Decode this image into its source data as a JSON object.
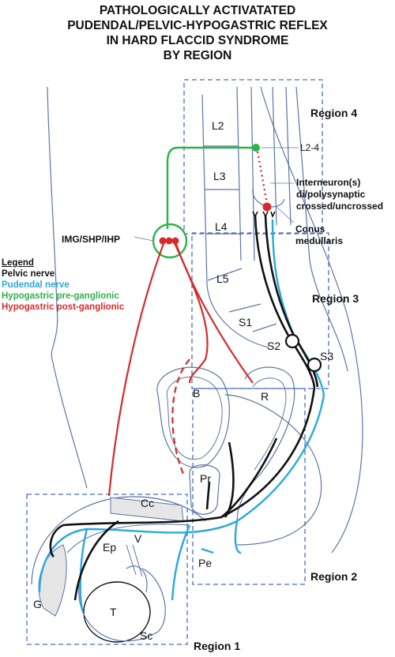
{
  "title": {
    "line1": "PATHOLOGICALLY ACTIVATATED",
    "line2": "PUDENDAL/PELVIC-HYPOGASTRIC REFLEX",
    "line3": "IN HARD FLACCID SYNDROME",
    "line4": "BY REGION"
  },
  "regions": {
    "r1": "Region 1",
    "r2": "Region 2",
    "r3": "Region 3",
    "r4": "Region 4"
  },
  "vertebrae": {
    "l2": "L2",
    "l3": "L3",
    "l4": "L4",
    "l5": "L5",
    "s1": "S1",
    "s2": "S2",
    "s3": "S3"
  },
  "labels": {
    "l2_4": "L2-4",
    "interneuron_1": "Interneuron(s)",
    "interneuron_2": "di/polysynaptic",
    "interneuron_3": "crossed/uncrossed",
    "conus_1": "Conus",
    "conus_2": "medullaris",
    "img": "IMG/SHP/IHP",
    "bladder": "B",
    "rectum": "R",
    "prostate": "Pr",
    "corpus": "Cc",
    "ep": "Ep",
    "v": "V",
    "g": "G",
    "t": "T",
    "sc": "Sc",
    "pe": "Pe"
  },
  "legend": {
    "heading": "Legend",
    "pelvic": "Pelvic nerve",
    "pudendal": "Pudendal nerve",
    "pre": "Hypogastric pre-ganglionic",
    "post": "Hypogastric post-ganglionic"
  },
  "colors": {
    "pelvic": "#111111",
    "pudendal": "#2aa8de",
    "pre": "#2eb24a",
    "post": "#d52b2b",
    "region_box": "#4a6fb5",
    "anatomy": "#5b76a8"
  }
}
